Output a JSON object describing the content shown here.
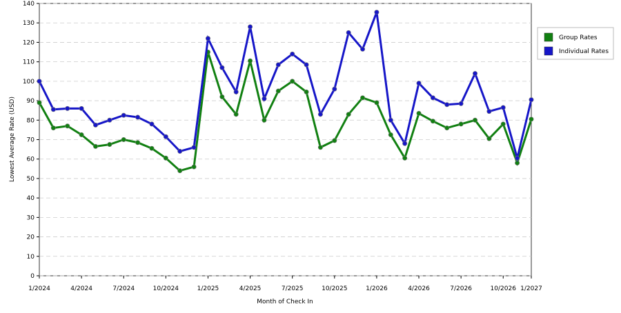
{
  "chart_data": {
    "type": "line",
    "x_label": "Month of Check In",
    "y_label": "Lowest Average Rate (USD)",
    "categories": [
      "1/2024",
      null,
      null,
      "4/2024",
      null,
      null,
      "7/2024",
      null,
      null,
      "10/2024",
      null,
      null,
      "1/2025",
      null,
      null,
      "4/2025",
      null,
      null,
      "7/2025",
      null,
      null,
      "10/2025",
      null,
      null,
      "1/2026",
      null,
      null,
      "4/2026",
      null,
      null,
      "7/2026",
      null,
      null,
      "10/2026",
      null,
      "1/2027"
    ],
    "series": [
      {
        "name": "Group Rates",
        "color": "#118011",
        "values": [
          89,
          76,
          77,
          72.5,
          66.5,
          67.5,
          70,
          68.5,
          65.5,
          60.5,
          54,
          56,
          115,
          92,
          83,
          110.5,
          80,
          95,
          100,
          94.5,
          66,
          69.5,
          83,
          91.5,
          89,
          72.5,
          60.5,
          83.5,
          79.5,
          76,
          78,
          80,
          70.5,
          78,
          58,
          80.5
        ]
      },
      {
        "name": "Individual Rates",
        "color": "#1616c8",
        "values": [
          100,
          85.5,
          86,
          86,
          77.5,
          80,
          82.5,
          81.5,
          78,
          71.5,
          64,
          66,
          122,
          107,
          94.5,
          128,
          91,
          108.5,
          114,
          108.5,
          83,
          96,
          125,
          116.5,
          135.5,
          80,
          68,
          99,
          91.5,
          88,
          88.5,
          104,
          84.5,
          86.5,
          60.5,
          90.5
        ]
      }
    ],
    "ylim": [
      0,
      140
    ],
    "yticks": [
      0,
      10,
      20,
      30,
      40,
      50,
      60,
      70,
      80,
      90,
      100,
      110,
      120,
      130,
      140
    ],
    "grid": true,
    "legend": "right"
  }
}
